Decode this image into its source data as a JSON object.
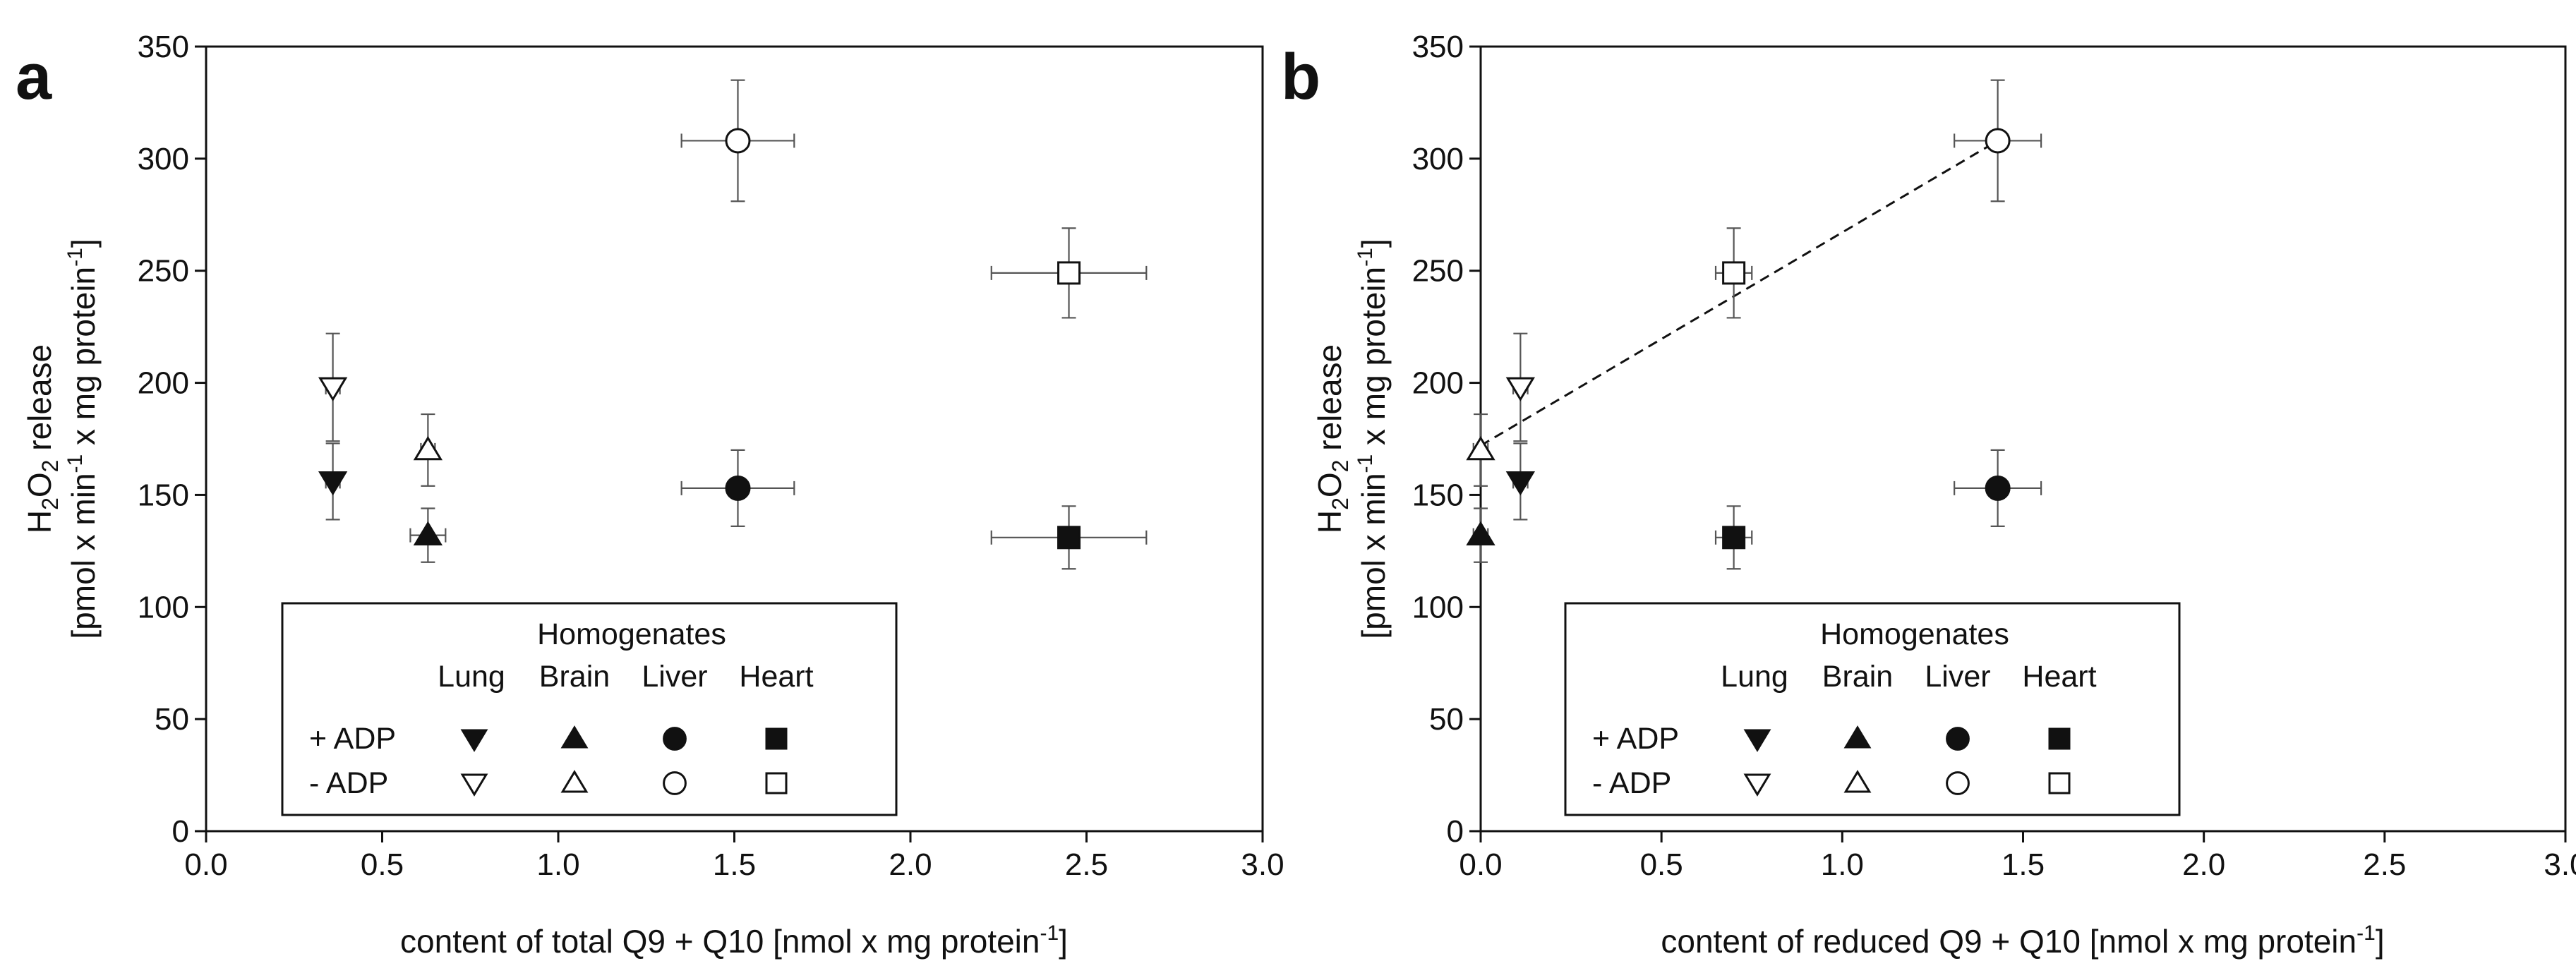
{
  "chart_data": [
    {
      "type": "scatter",
      "panel_label": "a",
      "xlabel": {
        "main": "content of total Q9 + Q10  [nmol x mg protein",
        "sup": "-1",
        "tail": "]"
      },
      "ylabel": {
        "line1": "H2O2  release",
        "line2": "[pmol x min-1 x mg protein-1]"
      },
      "xlim": [
        0,
        3
      ],
      "ylim": [
        0,
        350
      ],
      "xticks": [
        "0.0",
        "0.5",
        "1.0",
        "1.5",
        "2.0",
        "2.5",
        "3.0"
      ],
      "yticks": [
        "0",
        "50",
        "100",
        "150",
        "200",
        "250",
        "300",
        "350"
      ],
      "series": [
        {
          "name": "Lung + ADP",
          "marker": "triangle-down",
          "filled": true,
          "x": 0.36,
          "y": 156,
          "xerr": 0.02,
          "yerr": 17
        },
        {
          "name": "Lung - ADP",
          "marker": "triangle-down",
          "filled": false,
          "x": 0.36,
          "y": 198,
          "xerr": 0.02,
          "yerr": 24
        },
        {
          "name": "Brain + ADP",
          "marker": "triangle-up",
          "filled": true,
          "x": 0.63,
          "y": 132,
          "xerr": 0.05,
          "yerr": 12
        },
        {
          "name": "Brain - ADP",
          "marker": "triangle-up",
          "filled": false,
          "x": 0.63,
          "y": 170,
          "xerr": 0.02,
          "yerr": 16
        },
        {
          "name": "Liver + ADP",
          "marker": "circle",
          "filled": true,
          "x": 1.51,
          "y": 153,
          "xerr": 0.16,
          "yerr": 17
        },
        {
          "name": "Liver - ADP",
          "marker": "circle",
          "filled": false,
          "x": 1.51,
          "y": 308,
          "xerr": 0.16,
          "yerr": 27
        },
        {
          "name": "Heart + ADP",
          "marker": "square",
          "filled": true,
          "x": 2.45,
          "y": 131,
          "xerr": 0.22,
          "yerr": 14
        },
        {
          "name": "Heart - ADP",
          "marker": "square",
          "filled": false,
          "x": 2.45,
          "y": 249,
          "xerr": 0.22,
          "yerr": 20
        }
      ],
      "trendline": null
    },
    {
      "type": "scatter",
      "panel_label": "b",
      "xlabel": {
        "main": "content of reduced Q9 + Q10 [nmol x mg protein",
        "sup": "-1",
        "tail": "]"
      },
      "ylabel": {
        "line1": "H2O2  release",
        "line2": "[pmol x min-1 x mg protein-1]"
      },
      "xlim": [
        0,
        3
      ],
      "ylim": [
        0,
        350
      ],
      "xticks": [
        "0.0",
        "0.5",
        "1.0",
        "1.5",
        "2.0",
        "2.5",
        "3.0"
      ],
      "yticks": [
        "0",
        "50",
        "100",
        "150",
        "200",
        "250",
        "300",
        "350"
      ],
      "series": [
        {
          "name": "Lung + ADP",
          "marker": "triangle-down",
          "filled": true,
          "x": 0.11,
          "y": 156,
          "xerr": 0.02,
          "yerr": 17
        },
        {
          "name": "Lung - ADP",
          "marker": "triangle-down",
          "filled": false,
          "x": 0.11,
          "y": 198,
          "xerr": 0.02,
          "yerr": 24
        },
        {
          "name": "Brain + ADP",
          "marker": "triangle-up",
          "filled": true,
          "x": 0.0,
          "y": 132,
          "xerr": 0.02,
          "yerr": 12
        },
        {
          "name": "Brain - ADP",
          "marker": "triangle-up",
          "filled": false,
          "x": 0.0,
          "y": 170,
          "xerr": 0.02,
          "yerr": 16
        },
        {
          "name": "Liver + ADP",
          "marker": "circle",
          "filled": true,
          "x": 1.43,
          "y": 153,
          "xerr": 0.12,
          "yerr": 17
        },
        {
          "name": "Liver - ADP",
          "marker": "circle",
          "filled": false,
          "x": 1.43,
          "y": 308,
          "xerr": 0.12,
          "yerr": 27
        },
        {
          "name": "Heart + ADP",
          "marker": "square",
          "filled": true,
          "x": 0.7,
          "y": 131,
          "xerr": 0.05,
          "yerr": 14
        },
        {
          "name": "Heart - ADP",
          "marker": "square",
          "filled": false,
          "x": 0.7,
          "y": 249,
          "xerr": 0.05,
          "yerr": 20
        }
      ],
      "trendline": {
        "style": "dashed",
        "x": [
          0.0,
          1.43
        ],
        "y": [
          172,
          308
        ]
      }
    }
  ],
  "legend": {
    "title": "Homogenates",
    "columns": [
      "Lung",
      "Brain",
      "Liver",
      "Heart"
    ],
    "rows": [
      "+ ADP",
      "- ADP"
    ],
    "placement": "bottom-center"
  }
}
